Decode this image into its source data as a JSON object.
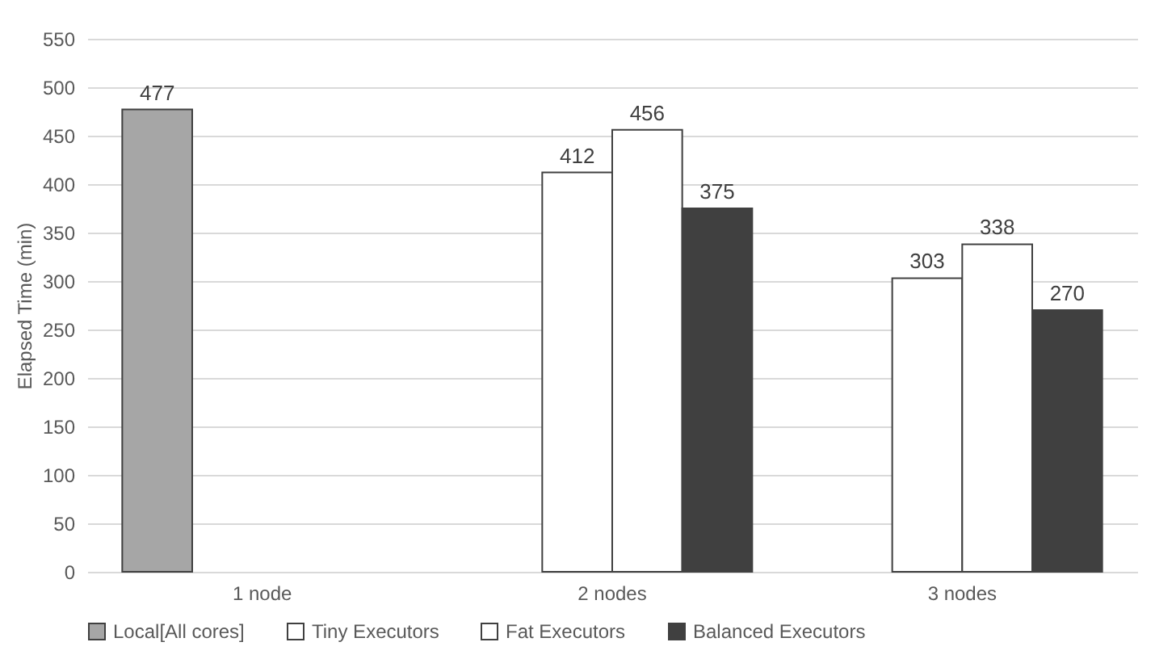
{
  "chart_data": {
    "type": "bar",
    "ylabel": "Elapsed Time (min)",
    "categories": [
      "1 node",
      "2 nodes",
      "3 nodes"
    ],
    "series": [
      {
        "name": "Local[All cores]",
        "color": "#a6a6a6",
        "values": [
          477,
          null,
          null
        ]
      },
      {
        "name": "Tiny Executors",
        "color": "#ffffff",
        "values": [
          null,
          412,
          303
        ]
      },
      {
        "name": "Fat Executors",
        "color": "#ffffff",
        "values": [
          null,
          456,
          338
        ]
      },
      {
        "name": "Balanced Executors",
        "color": "#404040",
        "values": [
          null,
          375,
          270
        ]
      }
    ],
    "ylim": [
      0,
      550
    ],
    "yticks": [
      0,
      50,
      100,
      150,
      200,
      250,
      300,
      350,
      400,
      450,
      500,
      550
    ],
    "grid": "y",
    "legend": "bottom",
    "data_labels": true
  }
}
